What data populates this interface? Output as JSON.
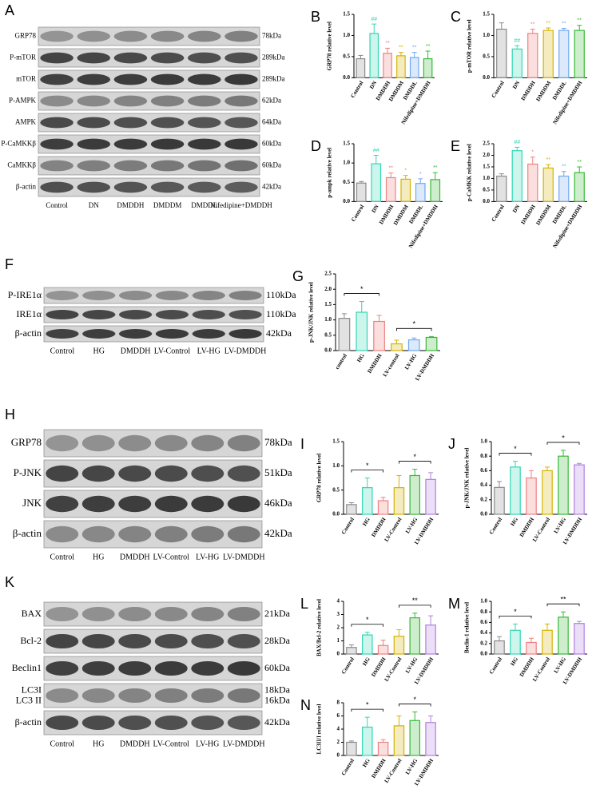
{
  "blots": [
    {
      "letter": "A",
      "rows": [
        {
          "label": "GRP78",
          "size": "78kDa"
        },
        {
          "label": "P-mTOR",
          "size": "289kDa"
        },
        {
          "label": "mTOR",
          "size": "289kDa"
        },
        {
          "label": "P-AMPK",
          "size": "62kDa"
        },
        {
          "label": "AMPK",
          "size": "64kDa"
        },
        {
          "label": "P-CaMKKβ",
          "size": "60kDa"
        },
        {
          "label": "CaMKKβ",
          "size": "60kDa"
        },
        {
          "label": "β-actin",
          "size": "42kDa"
        }
      ],
      "lanes": [
        "Control",
        "DN",
        "DMDDH",
        "DMDDM",
        "DMDDL",
        "Nifedipine+DMDDH"
      ]
    },
    {
      "letter": "F",
      "rows": [
        {
          "label": "P-IRE1α",
          "size": "110kDa"
        },
        {
          "label": "IRE1α",
          "size": "110kDa"
        },
        {
          "label": "β-actin",
          "size": "42kDa"
        }
      ],
      "lanes": [
        "Control",
        "HG",
        "DMDDH",
        "LV-Control",
        "LV-HG",
        "LV-DMDDH"
      ]
    },
    {
      "letter": "H",
      "rows": [
        {
          "label": "GRP78",
          "size": "78kDa"
        },
        {
          "label": "P-JNK",
          "size": "51kDa"
        },
        {
          "label": "JNK",
          "size": "46kDa"
        },
        {
          "label": "β-actin",
          "size": "42kDa"
        }
      ],
      "lanes": [
        "Control",
        "HG",
        "DMDDH",
        "LV-Control",
        "LV-HG",
        "LV-DMDDH"
      ]
    },
    {
      "letter": "K",
      "rows": [
        {
          "label": "BAX",
          "size": "21kDa"
        },
        {
          "label": "Bcl-2",
          "size": "28kDa"
        },
        {
          "label": "Beclin1",
          "size": "60kDa"
        },
        {
          "label": [
            "LC3I",
            "LC3 II"
          ],
          "size": [
            "18kDa",
            "16kDa"
          ]
        },
        {
          "label": "β-actin",
          "size": "42kDa"
        }
      ],
      "lanes": [
        "Control",
        "HG",
        "DMDDH",
        "LV-Control",
        "LV-HG",
        "LV-DMDDH"
      ]
    }
  ],
  "chart_data": [
    {
      "letter": "B",
      "type": "bar",
      "ylabel": "GRP78 relative level",
      "categories": [
        "Control",
        "DN",
        "DMDDH",
        "DMDDM",
        "DMDDL",
        "Nifedipine+DMDDH"
      ],
      "values": [
        0.45,
        1.05,
        0.58,
        0.52,
        0.48,
        0.45
      ],
      "errors": [
        0.08,
        0.22,
        0.12,
        0.08,
        0.12,
        0.18
      ],
      "annotations": [
        null,
        "##",
        "**",
        "**",
        "**",
        "**"
      ],
      "colors": [
        "#8a8a8a",
        "#33d6b5",
        "#f08080",
        "#d4b400",
        "#6fa8f0",
        "#38b838"
      ],
      "ylim": [
        0,
        1.5
      ],
      "yticks": [
        {
          "value": 0,
          "label": "0.0"
        },
        0.5,
        {
          "value": 1,
          "label": "1.0"
        },
        1.5
      ]
    },
    {
      "letter": "C",
      "type": "bar",
      "ylabel": "p-mTOR relative level",
      "categories": [
        "Control",
        "DN",
        "DMDDH",
        "DMDDM",
        "DMDDL",
        "Nifedipine+DMDDH"
      ],
      "values": [
        1.15,
        0.68,
        1.05,
        1.12,
        1.12,
        1.12
      ],
      "errors": [
        0.15,
        0.08,
        0.1,
        0.06,
        0.05,
        0.12
      ],
      "annotations": [
        null,
        "##",
        "**",
        "**",
        "**",
        "**"
      ],
      "colors": [
        "#8a8a8a",
        "#33d6b5",
        "#f08080",
        "#d4b400",
        "#6fa8f0",
        "#38b838"
      ],
      "ylim": [
        0,
        1.5
      ],
      "yticks": [
        {
          "value": 0,
          "label": "0.0"
        },
        0.5,
        {
          "value": 1,
          "label": "1.0"
        },
        1.5
      ]
    },
    {
      "letter": "D",
      "type": "bar",
      "ylabel": "p-ampk relative level",
      "categories": [
        "Control",
        "DN",
        "DMDDH",
        "DMDDM",
        "DMDDL",
        "Nifedipine+DMDDH"
      ],
      "values": [
        0.48,
        0.98,
        0.62,
        0.58,
        0.47,
        0.57
      ],
      "errors": [
        0.04,
        0.22,
        0.12,
        0.1,
        0.12,
        0.18
      ],
      "annotations": [
        null,
        "##",
        "**",
        "*",
        "*",
        "**"
      ],
      "colors": [
        "#8a8a8a",
        "#33d6b5",
        "#f08080",
        "#d4b400",
        "#6fa8f0",
        "#38b838"
      ],
      "ylim": [
        0,
        1.5
      ],
      "yticks": [
        {
          "value": 0,
          "label": "0.0"
        },
        0.5,
        {
          "value": 1,
          "label": "1.0"
        },
        1.5
      ]
    },
    {
      "letter": "E",
      "type": "bar",
      "ylabel": "p-CaMKK relative level",
      "categories": [
        "Control",
        "DN",
        "DMDDH",
        "DMDDM",
        "DMDDL",
        "Nifedipine+DMDDH"
      ],
      "values": [
        1.1,
        2.2,
        1.62,
        1.45,
        1.1,
        1.25
      ],
      "errors": [
        0.1,
        0.15,
        0.3,
        0.15,
        0.2,
        0.25
      ],
      "annotations": [
        null,
        "##",
        "*",
        "**",
        "**",
        "**"
      ],
      "colors": [
        "#8a8a8a",
        "#33d6b5",
        "#f08080",
        "#d4b400",
        "#6fa8f0",
        "#38b838"
      ],
      "ylim": [
        0,
        2.5
      ],
      "yticks": [
        {
          "value": 0,
          "label": "0.0"
        },
        0.5,
        {
          "value": 1,
          "label": "1.0"
        },
        1.5,
        {
          "value": 2,
          "label": "2.0"
        },
        2.5
      ]
    },
    {
      "letter": "G",
      "type": "bar",
      "ylabel": "p-JNK/JNK relative level",
      "categories": [
        "control",
        "HG",
        "DMDDH",
        "LV-control",
        "LV-HG",
        "LV-DMDDH"
      ],
      "values": [
        1.05,
        1.25,
        0.95,
        0.22,
        0.35,
        0.43
      ],
      "errors": [
        0.15,
        0.35,
        0.2,
        0.12,
        0.06,
        0.03
      ],
      "brackets": [
        {
          "from": 0,
          "to": 2,
          "label": "*"
        },
        {
          "from": 3,
          "to": 5,
          "label": "*"
        }
      ],
      "colors": [
        "#8a8a8a",
        "#33d6b5",
        "#f08080",
        "#d4b400",
        "#6fa8f0",
        "#38b838"
      ],
      "ylim": [
        0,
        2.5
      ],
      "yticks": [
        {
          "value": 0,
          "label": "0.0"
        },
        0.5,
        {
          "value": 1,
          "label": "1.0"
        },
        1.5,
        {
          "value": 2,
          "label": "2.0"
        },
        2.5
      ]
    },
    {
      "letter": "I",
      "type": "bar",
      "ylabel": "GRP78 relative level",
      "categories": [
        "Control",
        "HG",
        "DMDDH",
        "LV-Control",
        "LV-HG",
        "LV-DMDDH"
      ],
      "values": [
        0.2,
        0.55,
        0.28,
        0.55,
        0.8,
        0.72
      ],
      "errors": [
        0.04,
        0.2,
        0.07,
        0.25,
        0.13,
        0.14
      ],
      "brackets": [
        {
          "from": 0,
          "to": 2,
          "label": "*"
        },
        {
          "from": 3,
          "to": 5,
          "label": "*"
        }
      ],
      "colors": [
        "#8a8a8a",
        "#33d6b5",
        "#f08080",
        "#d4b400",
        "#38b838",
        "#b07ee0"
      ],
      "ylim": [
        0,
        1.5
      ],
      "yticks": [
        {
          "value": 0,
          "label": "0.0"
        },
        0.5,
        {
          "value": 1,
          "label": "1.0"
        },
        1.5
      ]
    },
    {
      "letter": "J",
      "type": "bar",
      "ylabel": "p-JNK/JNK relative level",
      "categories": [
        "Control",
        "HG",
        "DMDDH",
        "LV-Control",
        "LV-HG",
        "LV-DMDDH"
      ],
      "values": [
        0.37,
        0.65,
        0.5,
        0.6,
        0.8,
        0.68
      ],
      "errors": [
        0.08,
        0.08,
        0.1,
        0.05,
        0.08,
        0.02
      ],
      "brackets": [
        {
          "from": 0,
          "to": 2,
          "label": "*"
        },
        {
          "from": 3,
          "to": 5,
          "label": "*"
        }
      ],
      "colors": [
        "#8a8a8a",
        "#33d6b5",
        "#f08080",
        "#d4b400",
        "#38b838",
        "#b07ee0"
      ],
      "ylim": [
        0,
        1
      ],
      "yticks": [
        {
          "value": 0,
          "label": "0.0"
        },
        0.2,
        0.4,
        0.6,
        0.8,
        {
          "value": 1,
          "label": "1.0"
        }
      ]
    },
    {
      "letter": "L",
      "type": "bar",
      "ylabel": "BAX/Bcl-2 relative level",
      "categories": [
        "Control",
        "HG",
        "DMDDH",
        "LV-Control",
        "LV-HG",
        "LV-DMDDH"
      ],
      "values": [
        0.5,
        1.45,
        0.65,
        1.35,
        2.75,
        2.2
      ],
      "errors": [
        0.2,
        0.2,
        0.4,
        0.5,
        0.35,
        0.7
      ],
      "brackets": [
        {
          "from": 0,
          "to": 2,
          "label": "*"
        },
        {
          "from": 3,
          "to": 5,
          "label": "**"
        }
      ],
      "colors": [
        "#8a8a8a",
        "#33d6b5",
        "#f08080",
        "#d4b400",
        "#38b838",
        "#b07ee0"
      ],
      "ylim": [
        0,
        4
      ],
      "yticks": [
        0,
        1,
        2,
        3,
        4
      ]
    },
    {
      "letter": "M",
      "type": "bar",
      "ylabel": "Beclin-1 relative level",
      "categories": [
        "Control",
        "HG",
        "DMDDH",
        "LV-Control",
        "LV-HG",
        "LV-DMDDH"
      ],
      "values": [
        0.25,
        0.45,
        0.22,
        0.45,
        0.7,
        0.58
      ],
      "errors": [
        0.08,
        0.12,
        0.08,
        0.12,
        0.1,
        0.04
      ],
      "brackets": [
        {
          "from": 0,
          "to": 2,
          "label": "*"
        },
        {
          "from": 3,
          "to": 5,
          "label": "**"
        }
      ],
      "colors": [
        "#8a8a8a",
        "#33d6b5",
        "#f08080",
        "#d4b400",
        "#38b838",
        "#b07ee0"
      ],
      "ylim": [
        0,
        1
      ],
      "yticks": [
        {
          "value": 0,
          "label": "0.0"
        },
        0.2,
        0.4,
        0.6,
        0.8,
        {
          "value": 1,
          "label": "1.0"
        }
      ]
    },
    {
      "letter": "N",
      "type": "bar",
      "ylabel": "LC3II/I relative level",
      "categories": [
        "Control",
        "HG",
        "DMDDH",
        "LV-Control",
        "LV-HG",
        "LV-DMDDH"
      ],
      "values": [
        2.0,
        4.3,
        2.0,
        4.5,
        5.3,
        5.0
      ],
      "errors": [
        0.2,
        1.5,
        0.4,
        1.5,
        1.3,
        1.0
      ],
      "brackets": [
        {
          "from": 0,
          "to": 2,
          "label": "*"
        },
        {
          "from": 3,
          "to": 5,
          "label": "*"
        }
      ],
      "colors": [
        "#8a8a8a",
        "#33d6b5",
        "#f08080",
        "#d4b400",
        "#38b838",
        "#b07ee0"
      ],
      "ylim": [
        0,
        8
      ],
      "yticks": [
        0,
        2,
        4,
        6,
        8
      ]
    }
  ]
}
